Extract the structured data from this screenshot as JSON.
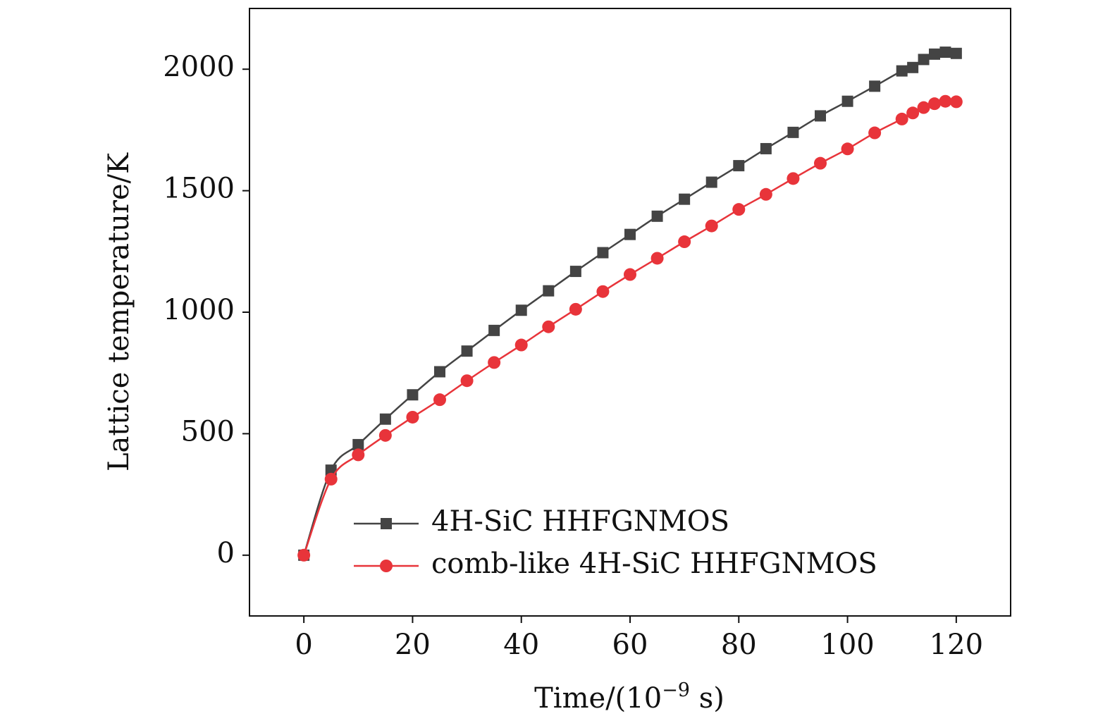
{
  "chart_data": {
    "type": "line",
    "title": "",
    "xlabel": "Time/(10",
    "xlabel_exp": "−9",
    "xlabel_tail": " s)",
    "ylabel": "Lattice temperature/K",
    "xlim": [
      -10,
      130
    ],
    "ylim": [
      -250,
      2250
    ],
    "xticks": [
      0,
      20,
      40,
      60,
      80,
      100,
      120
    ],
    "yticks": [
      0,
      500,
      1000,
      1500,
      2000
    ],
    "xtick_labels": [
      "0",
      "20",
      "40",
      "60",
      "80",
      "100",
      "120"
    ],
    "ytick_labels": [
      "0",
      "500",
      "1000",
      "1500",
      "2000"
    ],
    "grid": false,
    "legend_position": "bottom-right",
    "series": [
      {
        "name": "4H-SiC HHFGNMOS",
        "color": "#444444",
        "marker": "square",
        "x": [
          0,
          5,
          10,
          15,
          20,
          25,
          30,
          35,
          40,
          45,
          50,
          55,
          60,
          65,
          70,
          75,
          80,
          85,
          90,
          95,
          100,
          105,
          110,
          112,
          114,
          116,
          118,
          120
        ],
        "y": [
          0,
          350,
          455,
          560,
          660,
          755,
          840,
          925,
          1008,
          1088,
          1168,
          1245,
          1320,
          1395,
          1465,
          1535,
          1603,
          1673,
          1740,
          1808,
          1868,
          1930,
          1993,
          2007,
          2040,
          2062,
          2070,
          2065
        ]
      },
      {
        "name": "comb-like 4H-SiC HHFGNMOS",
        "color": "#e8343a",
        "marker": "circle",
        "x": [
          0,
          5,
          10,
          15,
          20,
          25,
          30,
          35,
          40,
          45,
          50,
          55,
          60,
          65,
          70,
          75,
          80,
          85,
          90,
          95,
          100,
          105,
          110,
          112,
          114,
          116,
          118,
          120
        ],
        "y": [
          0,
          313,
          413,
          493,
          568,
          640,
          718,
          793,
          865,
          940,
          1012,
          1085,
          1155,
          1222,
          1290,
          1355,
          1423,
          1485,
          1550,
          1613,
          1672,
          1738,
          1795,
          1820,
          1842,
          1858,
          1868,
          1866
        ]
      }
    ]
  }
}
